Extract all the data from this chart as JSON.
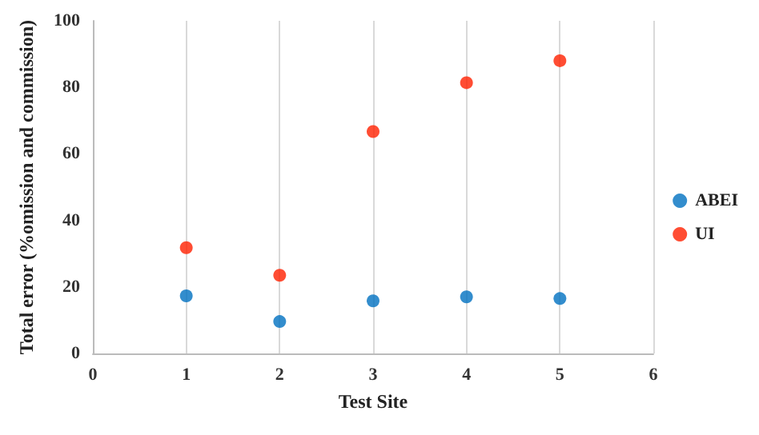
{
  "chart_data": {
    "type": "scatter",
    "xlabel": "Test Site",
    "ylabel": "Total error (%omission and commission)",
    "x": [
      1,
      2,
      3,
      4,
      5
    ],
    "series": [
      {
        "name": "ABEI",
        "color": "#0070c0",
        "values": [
          17.3,
          9.6,
          15.8,
          17.0,
          16.5
        ]
      },
      {
        "name": "UI",
        "color": "#ff2000",
        "values": [
          31.8,
          23.5,
          66.7,
          81.4,
          88.0
        ]
      }
    ],
    "xlim": [
      0,
      6
    ],
    "xticks": [
      0,
      1,
      2,
      3,
      4,
      5,
      6
    ],
    "ylim": [
      0,
      100
    ],
    "yticks": [
      0,
      20,
      40,
      60,
      80,
      100
    ],
    "grid": "x",
    "legend": "right",
    "marker": "circle"
  }
}
